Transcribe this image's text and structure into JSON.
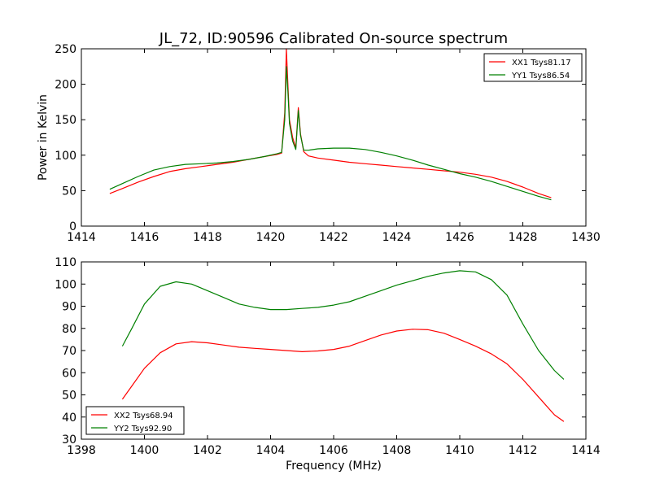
{
  "chart_data": [
    {
      "type": "line",
      "title": "JL_72, ID:90596 Calibrated On-source spectrum",
      "xlabel": "",
      "ylabel": "Power in Kelvin",
      "xlim": [
        1414,
        1430
      ],
      "ylim": [
        0,
        250
      ],
      "xticks": [
        "1414",
        "1416",
        "1418",
        "1420",
        "1422",
        "1424",
        "1426",
        "1428",
        "1430"
      ],
      "yticks": [
        "0",
        "50",
        "100",
        "150",
        "200",
        "250"
      ],
      "grid": false,
      "legend": "top-right",
      "series": [
        {
          "name": "XX1 Tsys81.17",
          "color": "#ff0000",
          "x": [
            1414.9,
            1415.3,
            1415.8,
            1416.3,
            1416.8,
            1417.3,
            1417.8,
            1418.3,
            1418.8,
            1419.3,
            1419.8,
            1420.2,
            1420.35,
            1420.45,
            1420.5,
            1420.55,
            1420.6,
            1420.7,
            1420.8,
            1420.88,
            1420.95,
            1421.05,
            1421.2,
            1421.5,
            1422.0,
            1422.5,
            1423.0,
            1423.5,
            1424.0,
            1424.5,
            1425.0,
            1425.5,
            1426.0,
            1426.5,
            1427.0,
            1427.5,
            1428.0,
            1428.5,
            1428.9
          ],
          "y": [
            46,
            53,
            62,
            70,
            77,
            81,
            84,
            87,
            90,
            94,
            98,
            101,
            103,
            160,
            250,
            200,
            150,
            125,
            110,
            167,
            130,
            105,
            99,
            96,
            93,
            90,
            88,
            86,
            84,
            82,
            80,
            78,
            76,
            73,
            69,
            63,
            55,
            46,
            40
          ]
        },
        {
          "name": "YY1 Tsys86.54",
          "color": "#008000",
          "x": [
            1414.9,
            1415.3,
            1415.8,
            1416.3,
            1416.8,
            1417.3,
            1417.8,
            1418.3,
            1418.8,
            1419.3,
            1419.8,
            1420.2,
            1420.35,
            1420.45,
            1420.5,
            1420.55,
            1420.6,
            1420.7,
            1420.8,
            1420.88,
            1420.95,
            1421.05,
            1421.2,
            1421.5,
            1422.0,
            1422.5,
            1423.0,
            1423.5,
            1424.0,
            1424.5,
            1425.0,
            1425.5,
            1426.0,
            1426.5,
            1427.0,
            1427.5,
            1428.0,
            1428.5,
            1428.9
          ],
          "y": [
            52,
            60,
            70,
            79,
            84,
            87,
            88,
            89,
            91,
            94,
            98,
            102,
            104,
            150,
            225,
            190,
            145,
            120,
            108,
            163,
            128,
            107,
            107,
            109,
            110,
            110,
            108,
            104,
            99,
            93,
            86,
            80,
            74,
            69,
            63,
            56,
            49,
            42,
            37
          ]
        }
      ]
    },
    {
      "type": "line",
      "title": "",
      "xlabel": "Frequency (MHz)",
      "ylabel": "",
      "xlim": [
        1398,
        1414
      ],
      "ylim": [
        30,
        110
      ],
      "xticks": [
        "1398",
        "1400",
        "1402",
        "1404",
        "1406",
        "1408",
        "1410",
        "1412",
        "1414"
      ],
      "yticks": [
        "30",
        "40",
        "50",
        "60",
        "70",
        "80",
        "90",
        "100",
        "110"
      ],
      "grid": false,
      "legend": "bottom-left",
      "series": [
        {
          "name": "XX2 Tsys68.94",
          "color": "#ff0000",
          "x": [
            1399.3,
            1399.6,
            1400.0,
            1400.5,
            1401.0,
            1401.5,
            1402.0,
            1402.5,
            1403.0,
            1403.5,
            1404.0,
            1404.5,
            1405.0,
            1405.5,
            1406.0,
            1406.5,
            1407.0,
            1407.5,
            1408.0,
            1408.5,
            1409.0,
            1409.5,
            1410.0,
            1410.5,
            1411.0,
            1411.5,
            1412.0,
            1412.5,
            1413.0,
            1413.3
          ],
          "y": [
            48,
            54,
            62,
            69,
            73,
            74,
            73.5,
            72.5,
            71.5,
            71,
            70.5,
            70,
            69.5,
            69.8,
            70.5,
            72,
            74.5,
            77,
            78.8,
            79.6,
            79.4,
            77.8,
            75,
            72,
            68.5,
            64,
            57,
            49,
            41,
            38
          ]
        },
        {
          "name": "YY2 Tsys92.90",
          "color": "#008000",
          "x": [
            1399.3,
            1399.6,
            1400.0,
            1400.5,
            1401.0,
            1401.5,
            1402.0,
            1402.5,
            1403.0,
            1403.5,
            1404.0,
            1404.5,
            1405.0,
            1405.5,
            1406.0,
            1406.5,
            1407.0,
            1407.5,
            1408.0,
            1408.5,
            1409.0,
            1409.5,
            1410.0,
            1410.5,
            1411.0,
            1411.5,
            1412.0,
            1412.5,
            1413.0,
            1413.3
          ],
          "y": [
            72,
            80,
            91,
            99,
            101,
            100,
            97,
            94,
            91,
            89.5,
            88.5,
            88.5,
            89,
            89.5,
            90.5,
            92,
            94.5,
            97,
            99.5,
            101.5,
            103.5,
            105,
            106,
            105.5,
            102,
            95,
            82,
            70,
            61,
            57
          ]
        }
      ]
    }
  ]
}
